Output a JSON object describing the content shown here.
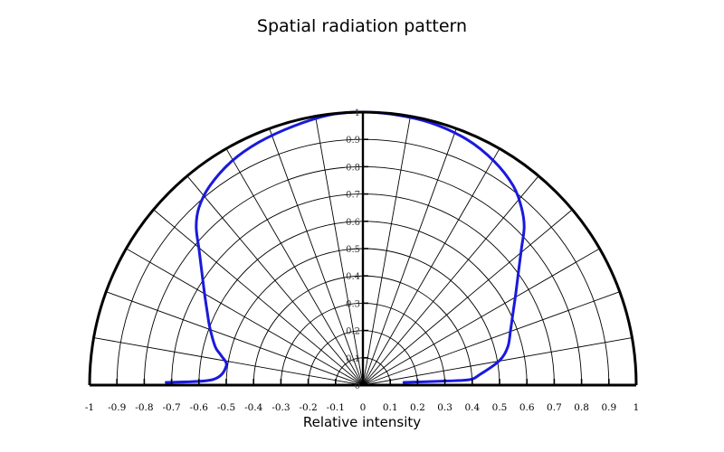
{
  "chart_data": {
    "type": "polar-line",
    "title": "Spatial radiation pattern",
    "xlabel": "Relative intensity",
    "ylabel": "",
    "x_range": [
      -1,
      1
    ],
    "r_range": [
      0,
      1
    ],
    "x_tick_labels": [
      "-1",
      "-0.9",
      "-0.8",
      "-0.7",
      "-0.6",
      "-0.5",
      "-0.4",
      "-0.3",
      "-0.2",
      "-0.1",
      "0",
      "0.1",
      "0.2",
      "0.3",
      "0.4",
      "0.5",
      "0.6",
      "0.7",
      "0.8",
      "0.9",
      "1"
    ],
    "r_tick_labels": [
      "0",
      "0.1",
      "0.2",
      "0.3",
      "0.4",
      "0.5",
      "0.6",
      "0.7",
      "0.8",
      "0.9",
      "1"
    ],
    "angle_step_deg": 10,
    "grid": true,
    "series_color": "#1a1adb",
    "series": [
      {
        "points": [
          {
            "x": -0.72,
            "y": 0.01
          },
          {
            "x": -0.55,
            "y": 0.02
          },
          {
            "x": -0.5,
            "y": 0.07
          },
          {
            "x": -0.52,
            "y": 0.11
          },
          {
            "x": -0.54,
            "y": 0.14
          },
          {
            "x": -0.56,
            "y": 0.21
          },
          {
            "x": -0.57,
            "y": 0.27
          },
          {
            "x": -0.58,
            "y": 0.34
          },
          {
            "x": -0.59,
            "y": 0.42
          },
          {
            "x": -0.6,
            "y": 0.5
          },
          {
            "x": -0.61,
            "y": 0.58
          },
          {
            "x": -0.6,
            "y": 0.65
          },
          {
            "x": -0.56,
            "y": 0.73
          },
          {
            "x": -0.48,
            "y": 0.82
          },
          {
            "x": -0.38,
            "y": 0.89
          },
          {
            "x": -0.25,
            "y": 0.95
          },
          {
            "x": -0.12,
            "y": 0.99
          },
          {
            "x": 0.0,
            "y": 1.0
          },
          {
            "x": 0.12,
            "y": 0.99
          },
          {
            "x": 0.25,
            "y": 0.96
          },
          {
            "x": 0.38,
            "y": 0.9
          },
          {
            "x": 0.48,
            "y": 0.82
          },
          {
            "x": 0.55,
            "y": 0.73
          },
          {
            "x": 0.58,
            "y": 0.65
          },
          {
            "x": 0.59,
            "y": 0.58
          },
          {
            "x": 0.58,
            "y": 0.5
          },
          {
            "x": 0.57,
            "y": 0.42
          },
          {
            "x": 0.56,
            "y": 0.34
          },
          {
            "x": 0.55,
            "y": 0.27
          },
          {
            "x": 0.54,
            "y": 0.2
          },
          {
            "x": 0.53,
            "y": 0.14
          },
          {
            "x": 0.5,
            "y": 0.09
          },
          {
            "x": 0.43,
            "y": 0.04
          },
          {
            "x": 0.39,
            "y": 0.02
          },
          {
            "x": 0.3,
            "y": 0.015
          },
          {
            "x": 0.15,
            "y": 0.01
          }
        ]
      }
    ]
  }
}
